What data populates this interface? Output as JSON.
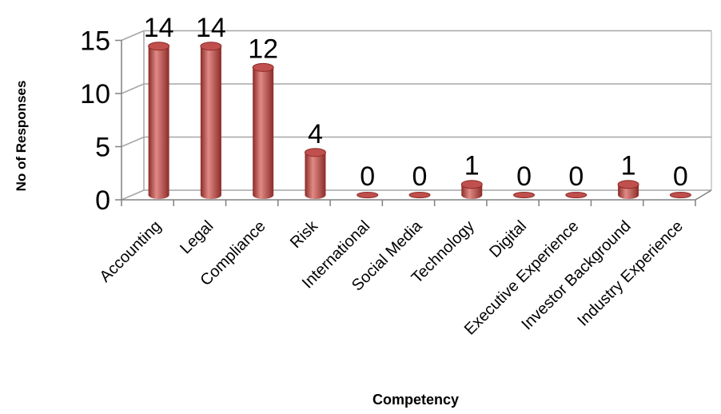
{
  "chart_data": {
    "type": "bar",
    "categories": [
      "Accounting",
      "Legal",
      "Compliance",
      "Risk",
      "International",
      "Social Media",
      "Technology",
      "Digital",
      "Executive Experience",
      "Investor Background",
      "Industry Experience"
    ],
    "values": [
      14,
      14,
      12,
      4,
      0,
      0,
      1,
      0,
      0,
      1,
      0
    ],
    "data_labels": [
      "14",
      "14",
      "12",
      "4",
      "0",
      "0",
      "1",
      "0",
      "0",
      "1",
      "0"
    ],
    "xlabel": "Competency",
    "ylabel": "No of  Responses",
    "ylim": [
      0,
      15
    ],
    "yticks": [
      0,
      5,
      10,
      15
    ],
    "grid": true,
    "colors": {
      "bar": "#c0504d",
      "bar_dark": "#8c2b28",
      "bar_light": "#e08a86",
      "grid": "#a6a6a6"
    }
  }
}
